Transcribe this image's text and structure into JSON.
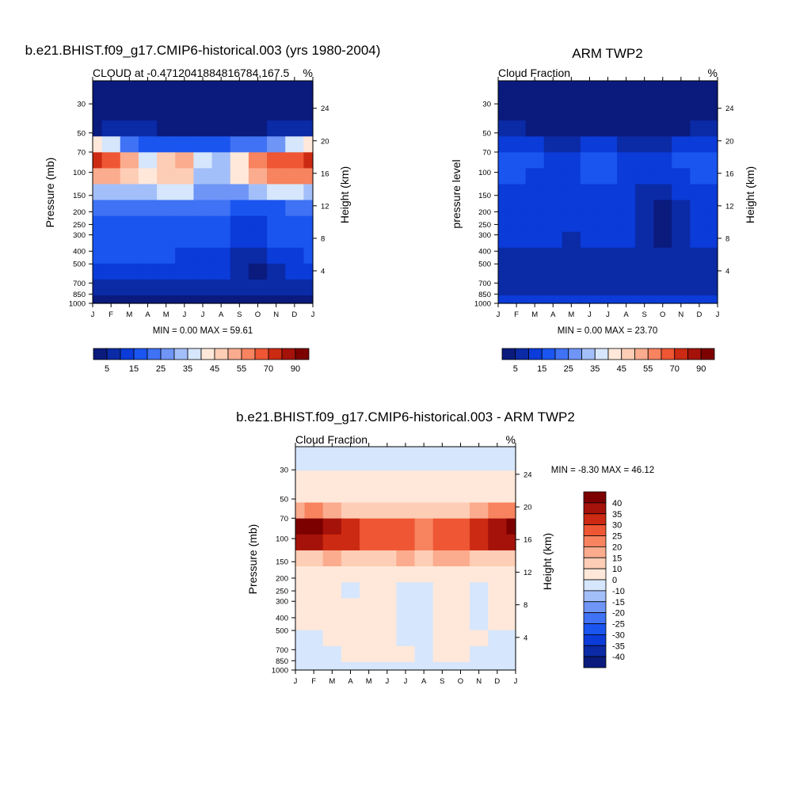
{
  "panels": [
    {
      "id": "model",
      "main_title": "b.e21.BHIST.f09_g17.CMIP6-historical.003 (yrs 1980-2004)",
      "left_title": "CLOUD at -0.4712041884816784,167.5",
      "right_title": "%",
      "ylabel": "Pressure (mb)",
      "ylabel_right": "Height (km)",
      "minmax": "MIN =   0.00 MAX =  59.61"
    },
    {
      "id": "obs",
      "main_title": "ARM TWP2",
      "left_title": "Cloud Fraction",
      "right_title": "%",
      "ylabel": "pressure level",
      "ylabel_right": "Height (km)",
      "minmax": "MIN =   0.00 MAX =  23.70"
    },
    {
      "id": "diff",
      "main_title": "b.e21.BHIST.f09_g17.CMIP6-historical.003 - ARM TWP2",
      "left_title": "Cloud Fraction",
      "right_title": "%",
      "ylabel": "Pressure (mb)",
      "ylabel_right": "Height (km)",
      "minmax": "MIN =  -8.30 MAX =  46.12"
    }
  ],
  "chart_data": [
    {
      "type": "heatmap",
      "name": "model",
      "x": [
        "J",
        "F",
        "M",
        "A",
        "M",
        "J",
        "J",
        "A",
        "S",
        "O",
        "N",
        "D",
        "J"
      ],
      "y_pressure": [
        30,
        50,
        70,
        100,
        150,
        200,
        250,
        300,
        400,
        500,
        700,
        850,
        1000
      ],
      "y_height_km": [
        4,
        8,
        12,
        16,
        20,
        24
      ],
      "colorbar_labels": [
        "5",
        "15",
        "25",
        "35",
        "45",
        "55",
        "70",
        "90"
      ],
      "colors": [
        "#0a1a7d",
        "#0b2aa6",
        "#0b3bd8",
        "#1a55ef",
        "#3f72f4",
        "#6f95f7",
        "#a3bffa",
        "#d6e6fc",
        "#ffe8d9",
        "#fdcdb5",
        "#fbac8e",
        "#f7835f",
        "#ee5634",
        "#cc2a12",
        "#a5120a",
        "#7d0000"
      ],
      "rows": [
        [
          0,
          0,
          0,
          0,
          0,
          0,
          0,
          0,
          0,
          0,
          0,
          0,
          0
        ],
        [
          0,
          0,
          0,
          0,
          0,
          0,
          0,
          0,
          0,
          0,
          0,
          0,
          0
        ],
        [
          0,
          0,
          0,
          0,
          0,
          0,
          0,
          0,
          0,
          0,
          0,
          0,
          0
        ],
        [
          0,
          1,
          1,
          1,
          0,
          0,
          0,
          0,
          0,
          0,
          1,
          1,
          1
        ],
        [
          8,
          7,
          4,
          3,
          3,
          3,
          3,
          3,
          4,
          4,
          5,
          7,
          8
        ],
        [
          13,
          12,
          10,
          7,
          9,
          10,
          7,
          6,
          8,
          11,
          12,
          12,
          13
        ],
        [
          10,
          10,
          9,
          8,
          9,
          9,
          6,
          6,
          8,
          10,
          11,
          11,
          11
        ],
        [
          6,
          6,
          6,
          6,
          7,
          7,
          5,
          5,
          5,
          6,
          7,
          7,
          6
        ],
        [
          4,
          4,
          4,
          4,
          4,
          4,
          4,
          4,
          3,
          3,
          3,
          4,
          4
        ],
        [
          3,
          3,
          3,
          3,
          3,
          3,
          3,
          3,
          2,
          2,
          3,
          3,
          3
        ],
        [
          3,
          3,
          3,
          3,
          3,
          3,
          3,
          3,
          2,
          2,
          3,
          3,
          3
        ],
        [
          3,
          3,
          3,
          3,
          3,
          2,
          2,
          2,
          1,
          1,
          2,
          2,
          3
        ],
        [
          2,
          2,
          2,
          2,
          2,
          2,
          2,
          2,
          1,
          0,
          1,
          2,
          2
        ],
        [
          1,
          1,
          1,
          1,
          1,
          1,
          1,
          1,
          1,
          1,
          1,
          1,
          1
        ],
        [
          0,
          0,
          0,
          0,
          0,
          0,
          0,
          0,
          0,
          0,
          0,
          0,
          0
        ]
      ]
    },
    {
      "type": "heatmap",
      "name": "obs",
      "x": [
        "J",
        "F",
        "M",
        "A",
        "M",
        "J",
        "J",
        "A",
        "S",
        "O",
        "N",
        "D",
        "J"
      ],
      "y_pressure": [
        30,
        50,
        70,
        100,
        150,
        200,
        250,
        300,
        400,
        500,
        700,
        850,
        1000
      ],
      "y_height_km": [
        4,
        8,
        12,
        16,
        20,
        24
      ],
      "colorbar_labels": [
        "5",
        "15",
        "25",
        "35",
        "45",
        "55",
        "70",
        "90"
      ],
      "colors": [
        "#0a1a7d",
        "#0b2aa6",
        "#0b3bd8",
        "#1a55ef",
        "#3f72f4",
        "#6f95f7",
        "#a3bffa",
        "#d6e6fc",
        "#ffe8d9",
        "#fdcdb5",
        "#fbac8e",
        "#f7835f",
        "#ee5634",
        "#cc2a12",
        "#a5120a",
        "#7d0000"
      ],
      "rows": [
        [
          0,
          0,
          0,
          0,
          0,
          0,
          0,
          0,
          0,
          0,
          0,
          0,
          0
        ],
        [
          0,
          0,
          0,
          0,
          0,
          0,
          0,
          0,
          0,
          0,
          0,
          0,
          0
        ],
        [
          0,
          0,
          0,
          0,
          0,
          0,
          0,
          0,
          0,
          0,
          0,
          0,
          0
        ],
        [
          1,
          1,
          0,
          0,
          0,
          0,
          0,
          0,
          0,
          0,
          0,
          1,
          1
        ],
        [
          2,
          2,
          2,
          1,
          1,
          2,
          2,
          1,
          1,
          1,
          2,
          2,
          2
        ],
        [
          3,
          3,
          3,
          2,
          2,
          3,
          3,
          2,
          2,
          2,
          3,
          3,
          3
        ],
        [
          3,
          3,
          2,
          2,
          2,
          3,
          3,
          2,
          2,
          2,
          2,
          3,
          3
        ],
        [
          2,
          2,
          2,
          2,
          2,
          2,
          2,
          2,
          1,
          1,
          2,
          2,
          2
        ],
        [
          2,
          2,
          2,
          2,
          2,
          2,
          2,
          2,
          1,
          0,
          1,
          2,
          2
        ],
        [
          2,
          2,
          2,
          2,
          2,
          2,
          2,
          2,
          1,
          0,
          1,
          2,
          2
        ],
        [
          2,
          2,
          2,
          2,
          1,
          2,
          2,
          2,
          1,
          0,
          1,
          2,
          2
        ],
        [
          1,
          1,
          1,
          1,
          1,
          1,
          1,
          1,
          1,
          1,
          1,
          1,
          1
        ],
        [
          1,
          1,
          1,
          1,
          1,
          1,
          1,
          1,
          1,
          1,
          1,
          1,
          1
        ],
        [
          1,
          1,
          1,
          1,
          1,
          1,
          1,
          1,
          1,
          1,
          1,
          1,
          1
        ],
        [
          2,
          2,
          2,
          2,
          2,
          2,
          2,
          2,
          2,
          2,
          2,
          2,
          2
        ]
      ]
    },
    {
      "type": "heatmap",
      "name": "diff",
      "x": [
        "J",
        "F",
        "M",
        "A",
        "M",
        "J",
        "J",
        "A",
        "S",
        "O",
        "N",
        "D",
        "J"
      ],
      "y_pressure": [
        30,
        50,
        70,
        100,
        150,
        200,
        250,
        300,
        400,
        500,
        700,
        850,
        1000
      ],
      "y_height_km": [
        4,
        8,
        12,
        16,
        20,
        24
      ],
      "colorbar_labels": [
        "40",
        "35",
        "30",
        "25",
        "20",
        "15",
        "10",
        "0",
        "-10",
        "-15",
        "-20",
        "-25",
        "-30",
        "-35",
        "-40"
      ],
      "colors": [
        "#7d0000",
        "#a5120a",
        "#cc2a12",
        "#ee5634",
        "#f7835f",
        "#fbac8e",
        "#fdcdb5",
        "#ffe8d9",
        "#d6e6fc",
        "#a3bffa",
        "#6f95f7",
        "#3f72f4",
        "#1a55ef",
        "#0b3bd8",
        "#0b2aa6",
        "#0a1a7d"
      ],
      "rows": [
        [
          8,
          8,
          8,
          8,
          8,
          8,
          8,
          8,
          8,
          8,
          8,
          8,
          8
        ],
        [
          8,
          8,
          8,
          8,
          8,
          8,
          8,
          8,
          8,
          8,
          8,
          8,
          8
        ],
        [
          7,
          7,
          7,
          7,
          7,
          7,
          7,
          7,
          7,
          7,
          7,
          7,
          7
        ],
        [
          7,
          7,
          7,
          7,
          7,
          7,
          7,
          7,
          7,
          7,
          7,
          7,
          7
        ],
        [
          5,
          4,
          5,
          6,
          6,
          6,
          6,
          6,
          6,
          6,
          5,
          4,
          4
        ],
        [
          0,
          0,
          1,
          2,
          3,
          3,
          3,
          4,
          3,
          3,
          2,
          1,
          0
        ],
        [
          1,
          1,
          2,
          2,
          3,
          3,
          3,
          4,
          3,
          3,
          2,
          1,
          1
        ],
        [
          6,
          6,
          5,
          6,
          6,
          6,
          5,
          6,
          5,
          5,
          6,
          6,
          6
        ],
        [
          7,
          7,
          7,
          7,
          7,
          7,
          7,
          7,
          7,
          7,
          7,
          7,
          7
        ],
        [
          7,
          7,
          7,
          8,
          7,
          7,
          8,
          8,
          7,
          7,
          8,
          7,
          7
        ],
        [
          7,
          7,
          7,
          7,
          7,
          7,
          8,
          8,
          7,
          7,
          8,
          7,
          7
        ],
        [
          7,
          7,
          7,
          7,
          7,
          7,
          8,
          8,
          7,
          7,
          8,
          7,
          7
        ],
        [
          8,
          8,
          7,
          7,
          7,
          7,
          8,
          8,
          7,
          7,
          7,
          8,
          8
        ],
        [
          8,
          8,
          8,
          7,
          7,
          7,
          7,
          8,
          7,
          7,
          8,
          8,
          8
        ],
        [
          8,
          8,
          8,
          8,
          8,
          8,
          8,
          8,
          8,
          8,
          8,
          8,
          8
        ]
      ]
    }
  ]
}
